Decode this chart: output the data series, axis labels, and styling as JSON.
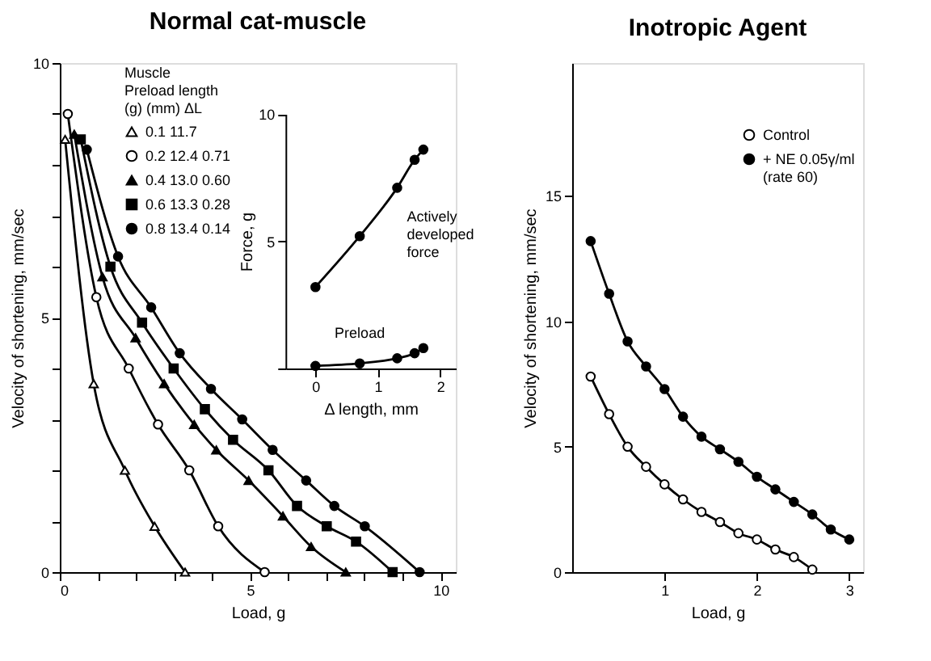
{
  "chart_data": [
    {
      "type": "line",
      "title": "Normal cat-muscle",
      "xlabel": "Load, g",
      "ylabel": "Velocity of shortening, mm/sec",
      "legend_title": "Muscle\nPreload length\n(g) (mm) ΔL",
      "legend": "top",
      "xlim": [
        0,
        10.4
      ],
      "ylim": [
        0,
        10
      ],
      "xticks": [
        0,
        {
          "value": 1,
          "label": null
        },
        {
          "value": 2,
          "label": null
        },
        {
          "value": 3,
          "label": null
        },
        {
          "value": 4,
          "label": null
        },
        5,
        {
          "value": 6,
          "label": null
        },
        {
          "value": 7,
          "label": null
        },
        {
          "value": 8,
          "label": null
        },
        {
          "value": 9,
          "label": null
        },
        10
      ],
      "yticks": [
        0,
        {
          "value": 1,
          "label": null
        },
        {
          "value": 2,
          "label": null
        },
        {
          "value": 3,
          "label": null
        },
        {
          "value": 4,
          "label": null
        },
        5,
        {
          "value": 6,
          "label": null
        },
        {
          "value": 7,
          "label": null
        },
        {
          "value": 8,
          "label": null
        },
        {
          "value": 9,
          "label": null
        },
        10
      ],
      "grid": false,
      "series": [
        {
          "name": "0.1 11.7",
          "color": "#ffffff",
          "marker": "triangle",
          "x": [
            0.14,
            0.89,
            1.71,
            2.49,
            3.29
          ],
          "values": [
            8.5,
            3.7,
            2.0,
            0.9,
            0
          ]
        },
        {
          "name": "0.2 12.4 0.71",
          "color": "#ffffff",
          "marker": "circle",
          "x": [
            0.21,
            0.96,
            1.81,
            2.58,
            3.4,
            4.16,
            5.38
          ],
          "values": [
            9.0,
            5.4,
            4.0,
            2.9,
            2.0,
            0.9,
            0
          ]
        },
        {
          "name": "0.4 13.0 0.60",
          "color": "#000000",
          "marker": "triangle",
          "x": [
            0.38,
            1.12,
            1.99,
            2.74,
            3.53,
            4.11,
            4.96,
            5.86,
            6.6,
            7.51
          ],
          "values": [
            8.6,
            5.8,
            4.6,
            3.7,
            2.9,
            2.4,
            1.8,
            1.1,
            0.5,
            0
          ]
        },
        {
          "name": "0.6 13.3 0.28",
          "color": "#000000",
          "marker": "square",
          "x": [
            0.55,
            1.33,
            2.16,
            2.99,
            3.81,
            4.55,
            5.48,
            6.23,
            7.01,
            7.78,
            8.74
          ],
          "values": [
            8.5,
            6.0,
            4.9,
            4.0,
            3.2,
            2.6,
            2.0,
            1.3,
            0.9,
            0.6,
            0
          ]
        },
        {
          "name": "0.8 13.4 0.14",
          "color": "#000000",
          "marker": "circle",
          "x": [
            0.71,
            1.53,
            2.4,
            3.15,
            3.97,
            4.79,
            5.59,
            6.47,
            7.21,
            8.01,
            9.45
          ],
          "values": [
            8.3,
            6.2,
            5.2,
            4.3,
            3.6,
            3.0,
            2.4,
            1.8,
            1.3,
            0.9,
            0
          ]
        }
      ]
    },
    {
      "type": "line",
      "xlabel": "Δ length, mm",
      "ylabel": "Force, g",
      "xlim": [
        -0.48,
        2.25
      ],
      "ylim": [
        0,
        10
      ],
      "xticks": [
        0,
        1,
        2
      ],
      "yticks": [
        {
          "value": 0,
          "label": null
        },
        5,
        10
      ],
      "grid": false,
      "legend": false,
      "marker": "circle",
      "series": [
        {
          "name": "Actively developed force",
          "color": "#000000",
          "x": [
            0,
            0.71,
            1.31,
            1.59,
            1.73
          ],
          "values": [
            3.2,
            5.2,
            7.1,
            8.2,
            8.6
          ]
        },
        {
          "name": "Preload",
          "color": "#000000",
          "x": [
            0,
            0.71,
            1.31,
            1.59,
            1.73
          ],
          "values": [
            0.1,
            0.2,
            0.4,
            0.6,
            0.8
          ]
        }
      ]
    },
    {
      "type": "line",
      "title": "Inotropic Agent",
      "xlabel": "Load, g",
      "ylabel": "Velocity of shortening, mm/sec",
      "xlim": [
        0,
        3.15
      ],
      "ylim": [
        0,
        20.3
      ],
      "xticks": [
        1,
        2,
        3
      ],
      "yticks": [
        0,
        5,
        10,
        15
      ],
      "grid": false,
      "legend": "top right",
      "marker": "circle",
      "series": [
        {
          "name": "Control",
          "color": "#ffffff",
          "x": [
            0.2,
            0.4,
            0.6,
            0.8,
            1.0,
            1.2,
            1.4,
            1.6,
            1.8,
            2.0,
            2.2,
            2.4,
            2.6
          ],
          "values": [
            7.8,
            6.3,
            5.0,
            4.2,
            3.5,
            2.9,
            2.4,
            2.0,
            1.55,
            1.3,
            0.9,
            0.6,
            0.1
          ]
        },
        {
          "name": "+ NE 0.05γ/ml\n(rate 60)",
          "color": "#000000",
          "x": [
            0.2,
            0.4,
            0.6,
            0.8,
            1.0,
            1.2,
            1.4,
            1.6,
            1.8,
            2.0,
            2.2,
            2.4,
            2.6,
            2.8,
            3.0
          ],
          "values": [
            13.2,
            11.1,
            9.2,
            8.2,
            7.3,
            6.2,
            5.4,
            4.9,
            4.4,
            3.8,
            3.3,
            2.8,
            2.3,
            1.7,
            1.3
          ]
        }
      ]
    }
  ]
}
